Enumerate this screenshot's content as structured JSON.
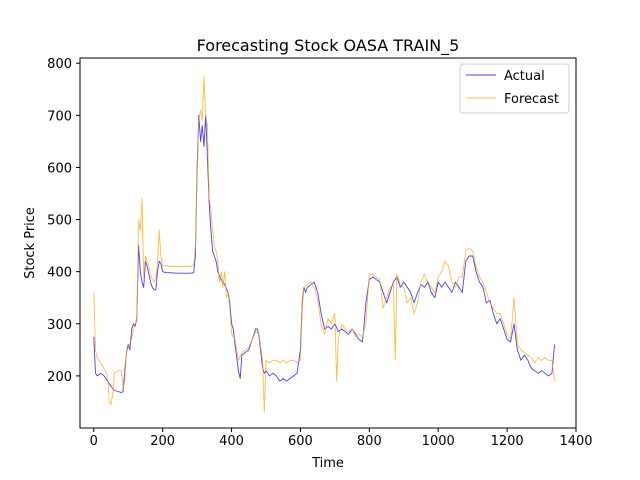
{
  "chart_data": {
    "type": "line",
    "title": "Forecasting Stock OASA TRAIN_5",
    "xlabel": "Time",
    "ylabel": "Stock Price",
    "xlim": [
      -40,
      1400
    ],
    "ylim": [
      100,
      810
    ],
    "xticks": [
      0,
      200,
      400,
      600,
      800,
      1000,
      1200,
      1400
    ],
    "yticks": [
      200,
      300,
      400,
      500,
      600,
      700,
      800
    ],
    "grid": false,
    "legend": "top-right",
    "series": [
      {
        "name": "Actual",
        "color": "#0000ff",
        "points": [
          [
            0,
            275
          ],
          [
            5,
            205
          ],
          [
            10,
            200
          ],
          [
            20,
            205
          ],
          [
            30,
            200
          ],
          [
            40,
            190
          ],
          [
            50,
            180
          ],
          [
            60,
            172
          ],
          [
            70,
            170
          ],
          [
            80,
            168
          ],
          [
            85,
            170
          ],
          [
            90,
            210
          ],
          [
            95,
            245
          ],
          [
            100,
            260
          ],
          [
            105,
            250
          ],
          [
            110,
            290
          ],
          [
            115,
            300
          ],
          [
            120,
            295
          ],
          [
            125,
            310
          ],
          [
            130,
            450
          ],
          [
            135,
            400
          ],
          [
            140,
            380
          ],
          [
            145,
            370
          ],
          [
            150,
            420
          ],
          [
            155,
            410
          ],
          [
            160,
            395
          ],
          [
            165,
            380
          ],
          [
            170,
            370
          ],
          [
            175,
            365
          ],
          [
            180,
            365
          ],
          [
            185,
            400
          ],
          [
            190,
            420
          ],
          [
            195,
            415
          ],
          [
            200,
            400
          ],
          [
            210,
            398
          ],
          [
            220,
            398
          ],
          [
            240,
            397
          ],
          [
            260,
            397
          ],
          [
            280,
            397
          ],
          [
            290,
            398
          ],
          [
            295,
            430
          ],
          [
            300,
            600
          ],
          [
            305,
            700
          ],
          [
            310,
            650
          ],
          [
            315,
            680
          ],
          [
            320,
            640
          ],
          [
            325,
            700
          ],
          [
            330,
            620
          ],
          [
            335,
            530
          ],
          [
            340,
            480
          ],
          [
            345,
            440
          ],
          [
            350,
            430
          ],
          [
            355,
            420
          ],
          [
            360,
            400
          ],
          [
            370,
            385
          ],
          [
            375,
            380
          ],
          [
            380,
            375
          ],
          [
            390,
            360
          ],
          [
            395,
            340
          ],
          [
            400,
            300
          ],
          [
            405,
            290
          ],
          [
            410,
            260
          ],
          [
            415,
            235
          ],
          [
            420,
            210
          ],
          [
            425,
            195
          ],
          [
            430,
            240
          ],
          [
            440,
            245
          ],
          [
            450,
            250
          ],
          [
            460,
            270
          ],
          [
            470,
            290
          ],
          [
            475,
            290
          ],
          [
            480,
            275
          ],
          [
            490,
            215
          ],
          [
            495,
            205
          ],
          [
            500,
            210
          ],
          [
            510,
            200
          ],
          [
            520,
            205
          ],
          [
            530,
            200
          ],
          [
            540,
            190
          ],
          [
            550,
            195
          ],
          [
            560,
            190
          ],
          [
            570,
            195
          ],
          [
            580,
            200
          ],
          [
            590,
            205
          ],
          [
            600,
            250
          ],
          [
            605,
            340
          ],
          [
            610,
            370
          ],
          [
            615,
            360
          ],
          [
            620,
            370
          ],
          [
            630,
            375
          ],
          [
            640,
            380
          ],
          [
            650,
            360
          ],
          [
            660,
            320
          ],
          [
            670,
            290
          ],
          [
            680,
            295
          ],
          [
            690,
            290
          ],
          [
            700,
            300
          ],
          [
            710,
            285
          ],
          [
            720,
            290
          ],
          [
            730,
            285
          ],
          [
            740,
            280
          ],
          [
            750,
            290
          ],
          [
            760,
            280
          ],
          [
            770,
            270
          ],
          [
            780,
            265
          ],
          [
            785,
            300
          ],
          [
            790,
            340
          ],
          [
            800,
            385
          ],
          [
            810,
            390
          ],
          [
            820,
            385
          ],
          [
            830,
            380
          ],
          [
            840,
            360
          ],
          [
            850,
            340
          ],
          [
            860,
            360
          ],
          [
            870,
            380
          ],
          [
            880,
            390
          ],
          [
            890,
            370
          ],
          [
            900,
            380
          ],
          [
            910,
            370
          ],
          [
            920,
            360
          ],
          [
            930,
            340
          ],
          [
            940,
            360
          ],
          [
            950,
            375
          ],
          [
            960,
            370
          ],
          [
            970,
            380
          ],
          [
            980,
            360
          ],
          [
            990,
            350
          ],
          [
            1000,
            380
          ],
          [
            1010,
            370
          ],
          [
            1020,
            380
          ],
          [
            1030,
            370
          ],
          [
            1040,
            360
          ],
          [
            1050,
            380
          ],
          [
            1060,
            370
          ],
          [
            1070,
            360
          ],
          [
            1080,
            420
          ],
          [
            1090,
            430
          ],
          [
            1100,
            430
          ],
          [
            1110,
            400
          ],
          [
            1120,
            380
          ],
          [
            1130,
            370
          ],
          [
            1140,
            340
          ],
          [
            1150,
            345
          ],
          [
            1160,
            320
          ],
          [
            1170,
            300
          ],
          [
            1180,
            310
          ],
          [
            1190,
            290
          ],
          [
            1200,
            270
          ],
          [
            1210,
            265
          ],
          [
            1220,
            300
          ],
          [
            1230,
            250
          ],
          [
            1240,
            230
          ],
          [
            1250,
            240
          ],
          [
            1260,
            230
          ],
          [
            1270,
            215
          ],
          [
            1280,
            210
          ],
          [
            1290,
            205
          ],
          [
            1300,
            210
          ],
          [
            1310,
            205
          ],
          [
            1320,
            200
          ],
          [
            1330,
            205
          ],
          [
            1338,
            260
          ]
        ]
      },
      {
        "name": "Forecast",
        "color": "#ffa500",
        "points": [
          [
            0,
            360
          ],
          [
            5,
            250
          ],
          [
            10,
            235
          ],
          [
            20,
            225
          ],
          [
            30,
            215
          ],
          [
            40,
            200
          ],
          [
            45,
            150
          ],
          [
            50,
            145
          ],
          [
            55,
            165
          ],
          [
            60,
            205
          ],
          [
            70,
            210
          ],
          [
            80,
            210
          ],
          [
            85,
            175
          ],
          [
            90,
            190
          ],
          [
            95,
            245
          ],
          [
            100,
            255
          ],
          [
            110,
            270
          ],
          [
            115,
            290
          ],
          [
            120,
            300
          ],
          [
            125,
            305
          ],
          [
            130,
            500
          ],
          [
            135,
            480
          ],
          [
            140,
            540
          ],
          [
            145,
            390
          ],
          [
            150,
            430
          ],
          [
            155,
            420
          ],
          [
            160,
            410
          ],
          [
            165,
            395
          ],
          [
            170,
            385
          ],
          [
            175,
            380
          ],
          [
            180,
            390
          ],
          [
            185,
            420
          ],
          [
            190,
            480
          ],
          [
            195,
            430
          ],
          [
            200,
            410
          ],
          [
            210,
            412
          ],
          [
            220,
            410
          ],
          [
            240,
            410
          ],
          [
            260,
            410
          ],
          [
            280,
            410
          ],
          [
            290,
            412
          ],
          [
            295,
            450
          ],
          [
            300,
            580
          ],
          [
            305,
            690
          ],
          [
            310,
            710
          ],
          [
            315,
            690
          ],
          [
            320,
            775
          ],
          [
            325,
            700
          ],
          [
            330,
            680
          ],
          [
            335,
            540
          ],
          [
            340,
            520
          ],
          [
            345,
            480
          ],
          [
            350,
            450
          ],
          [
            355,
            440
          ],
          [
            360,
            420
          ],
          [
            365,
            380
          ],
          [
            370,
            400
          ],
          [
            375,
            370
          ],
          [
            380,
            400
          ],
          [
            385,
            350
          ],
          [
            390,
            360
          ],
          [
            395,
            330
          ],
          [
            400,
            280
          ],
          [
            410,
            270
          ],
          [
            420,
            230
          ],
          [
            430,
            245
          ],
          [
            440,
            250
          ],
          [
            450,
            255
          ],
          [
            460,
            270
          ],
          [
            470,
            285
          ],
          [
            480,
            280
          ],
          [
            490,
            230
          ],
          [
            495,
            130
          ],
          [
            500,
            230
          ],
          [
            510,
            225
          ],
          [
            520,
            230
          ],
          [
            530,
            230
          ],
          [
            540,
            225
          ],
          [
            550,
            230
          ],
          [
            560,
            225
          ],
          [
            570,
            230
          ],
          [
            580,
            230
          ],
          [
            590,
            225
          ],
          [
            600,
            230
          ],
          [
            605,
            330
          ],
          [
            610,
            370
          ],
          [
            620,
            375
          ],
          [
            630,
            380
          ],
          [
            640,
            370
          ],
          [
            650,
            345
          ],
          [
            660,
            300
          ],
          [
            670,
            280
          ],
          [
            680,
            310
          ],
          [
            690,
            300
          ],
          [
            700,
            320
          ],
          [
            705,
            190
          ],
          [
            710,
            270
          ],
          [
            720,
            300
          ],
          [
            730,
            290
          ],
          [
            740,
            285
          ],
          [
            750,
            290
          ],
          [
            760,
            275
          ],
          [
            770,
            280
          ],
          [
            780,
            275
          ],
          [
            785,
            290
          ],
          [
            790,
            300
          ],
          [
            800,
            395
          ],
          [
            810,
            395
          ],
          [
            820,
            390
          ],
          [
            830,
            385
          ],
          [
            840,
            330
          ],
          [
            850,
            350
          ],
          [
            860,
            370
          ],
          [
            870,
            375
          ],
          [
            875,
            230
          ],
          [
            880,
            395
          ],
          [
            890,
            375
          ],
          [
            900,
            370
          ],
          [
            910,
            340
          ],
          [
            920,
            350
          ],
          [
            930,
            320
          ],
          [
            940,
            340
          ],
          [
            950,
            380
          ],
          [
            960,
            395
          ],
          [
            970,
            380
          ],
          [
            980,
            370
          ],
          [
            990,
            360
          ],
          [
            1000,
            390
          ],
          [
            1010,
            400
          ],
          [
            1020,
            420
          ],
          [
            1030,
            410
          ],
          [
            1040,
            380
          ],
          [
            1050,
            370
          ],
          [
            1060,
            390
          ],
          [
            1070,
            390
          ],
          [
            1080,
            440
          ],
          [
            1090,
            445
          ],
          [
            1100,
            440
          ],
          [
            1110,
            410
          ],
          [
            1120,
            390
          ],
          [
            1130,
            380
          ],
          [
            1140,
            360
          ],
          [
            1150,
            340
          ],
          [
            1160,
            330
          ],
          [
            1170,
            320
          ],
          [
            1180,
            320
          ],
          [
            1190,
            300
          ],
          [
            1200,
            280
          ],
          [
            1210,
            270
          ],
          [
            1220,
            350
          ],
          [
            1230,
            260
          ],
          [
            1240,
            250
          ],
          [
            1250,
            245
          ],
          [
            1260,
            240
          ],
          [
            1270,
            235
          ],
          [
            1280,
            225
          ],
          [
            1290,
            235
          ],
          [
            1300,
            230
          ],
          [
            1310,
            235
          ],
          [
            1320,
            230
          ],
          [
            1330,
            230
          ],
          [
            1338,
            190
          ]
        ]
      }
    ]
  }
}
